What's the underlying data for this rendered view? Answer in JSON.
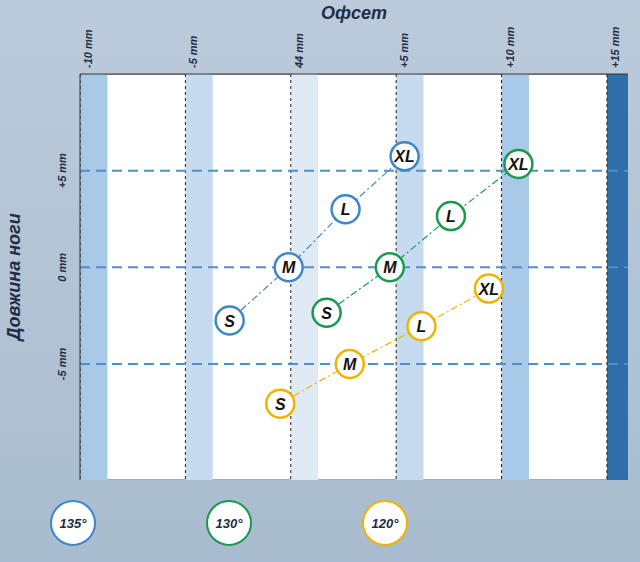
{
  "chart_data": {
    "type": "scatter",
    "x_label": "Офсет",
    "y_label": "Довжина ноги",
    "xlim": [
      -10,
      16
    ],
    "xticks": [
      {
        "value": -10,
        "label": "-10 mm"
      },
      {
        "value": -5,
        "label": "-5 mm"
      },
      {
        "value": 0,
        "label": "44 mm"
      },
      {
        "value": 5,
        "label": "+5 mm"
      },
      {
        "value": 10,
        "label": "+10 mm"
      },
      {
        "value": 15,
        "label": "+15 mm"
      }
    ],
    "ylim": [
      -11,
      10
    ],
    "yticks": [
      {
        "value": -5,
        "label": "-5 mm"
      },
      {
        "value": 0,
        "label": "0 mm"
      },
      {
        "value": 5,
        "label": "+5 mm"
      }
    ],
    "grid": true,
    "legend": "bottom",
    "marker": "circle",
    "line_style": "dashdot",
    "series": [
      {
        "name": "135°",
        "color": "#3d86c8",
        "x": [
          -2.9,
          -0.1,
          2.6,
          5.4
        ],
        "values": [
          -2.75,
          0,
          3.0,
          5.75
        ],
        "labels": [
          "S",
          "M",
          "L",
          "XL"
        ]
      },
      {
        "name": "130°",
        "color": "#1a9a50",
        "x": [
          1.7,
          4.7,
          7.6,
          10.8
        ],
        "values": [
          -2.35,
          0,
          2.65,
          5.35
        ],
        "labels": [
          "S",
          "M",
          "L",
          "XL"
        ]
      },
      {
        "name": "120°",
        "color": "#f0b400",
        "x": [
          -0.5,
          2.8,
          6.2,
          9.4
        ],
        "values": [
          -7.05,
          -5.0,
          -3.05,
          -1.1
        ],
        "labels": [
          "S",
          "M",
          "L",
          "XL"
        ]
      }
    ]
  }
}
